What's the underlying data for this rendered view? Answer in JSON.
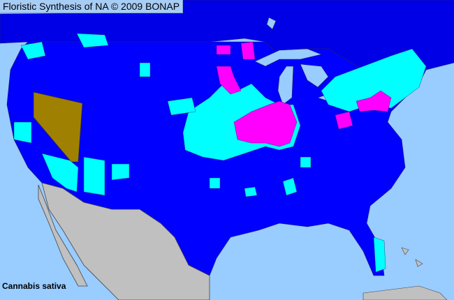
{
  "header": {
    "title": "Floristic Synthesis of NA © 2009 BONAP"
  },
  "map": {
    "species": "Cannabis sativa",
    "colors": {
      "ocean": "#99ccff",
      "present_state_not_rare": "#0000ff",
      "present_county_native": "#00ffff",
      "present_county_noxious": "#ff00ff",
      "state_status_special": "#a08000",
      "not_in_region": "#c0c0c0",
      "county_lines": "#333366"
    }
  }
}
